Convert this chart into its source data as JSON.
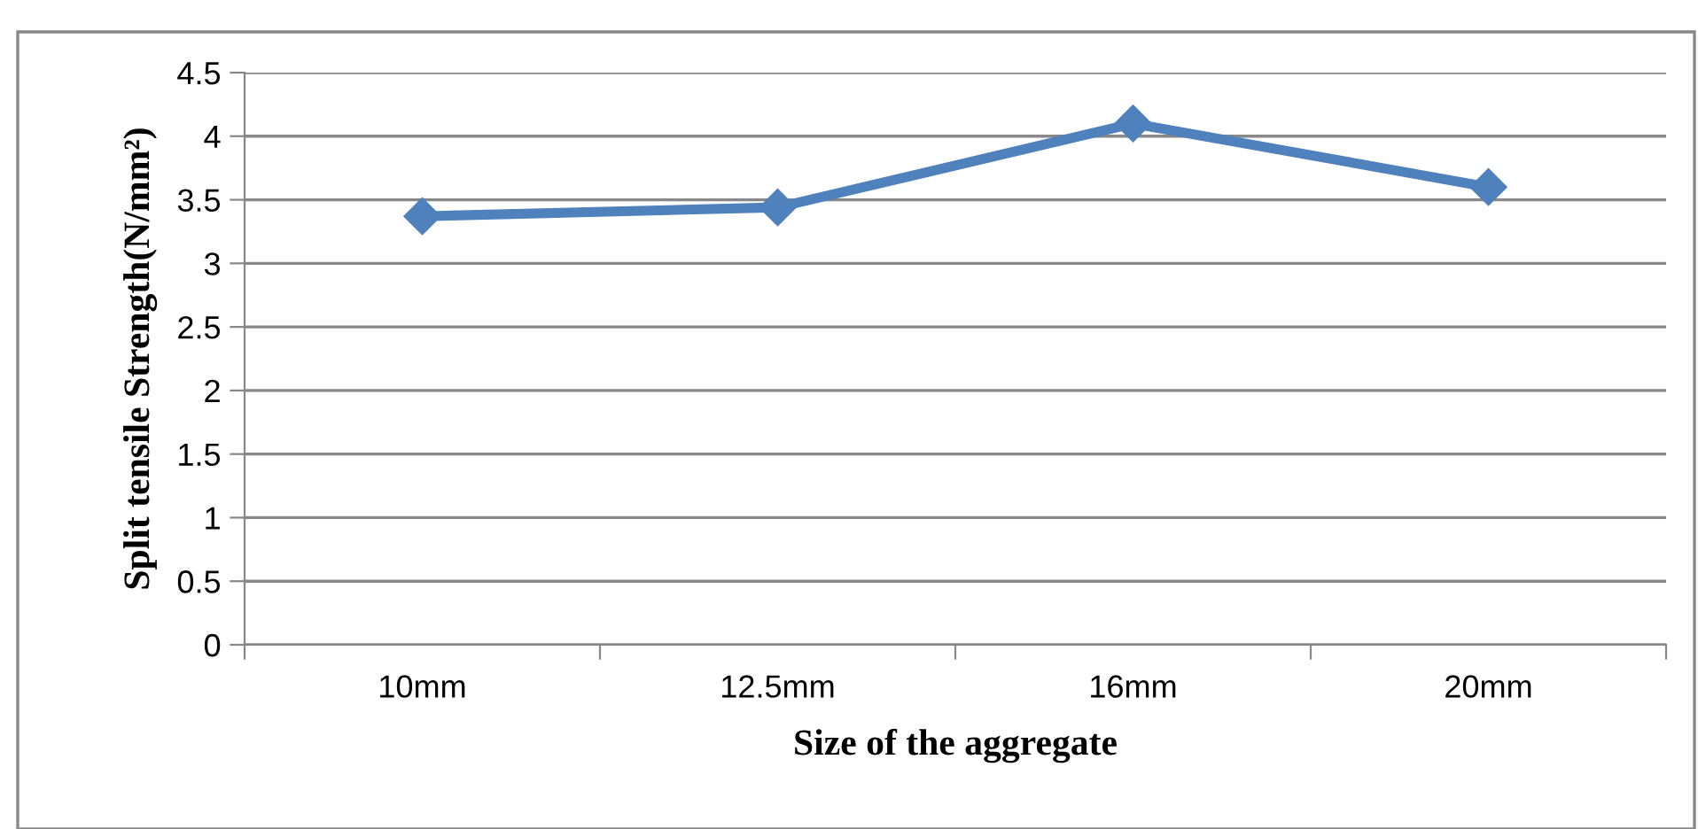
{
  "chart_data": {
    "type": "line",
    "xlabel": "Size of the aggregate",
    "ylabel": "Split tensile Strength(N/mm²)",
    "categories": [
      "10mm",
      "12.5mm",
      "16mm",
      "20mm"
    ],
    "series": [
      {
        "color": "#4f81bd",
        "values": [
          3.37,
          3.44,
          4.1,
          3.6
        ]
      }
    ],
    "ylim": [
      0,
      4.5
    ],
    "yticks": [
      0,
      0.5,
      1,
      1.5,
      2,
      2.5,
      3,
      3.5,
      4,
      4.5
    ],
    "grid": "y",
    "marker": "diamond",
    "line_style": "solid"
  }
}
